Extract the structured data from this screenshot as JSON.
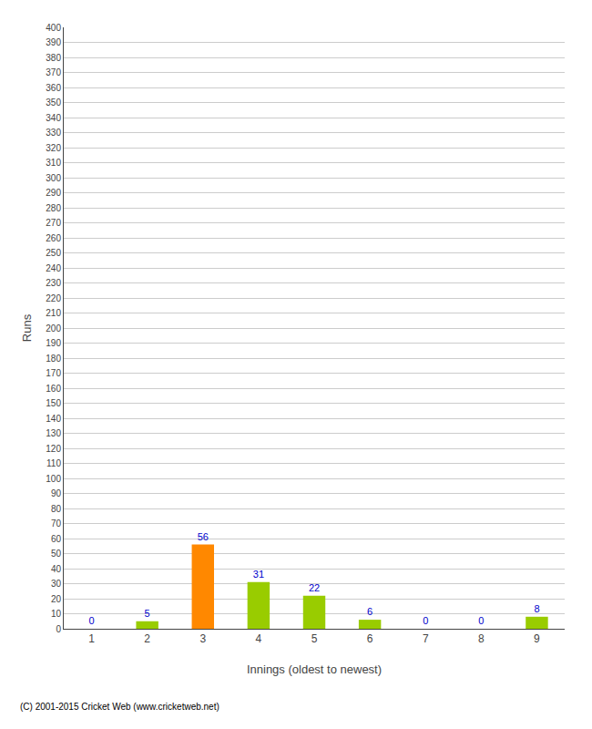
{
  "chart_data": {
    "type": "bar",
    "xlabel": "Innings (oldest to newest)",
    "ylabel": "Runs",
    "categories": [
      "1",
      "2",
      "3",
      "4",
      "5",
      "6",
      "7",
      "8",
      "9"
    ],
    "values": [
      0,
      5,
      56,
      31,
      22,
      6,
      0,
      0,
      8
    ],
    "colors": [
      "#99cc00",
      "#99cc00",
      "#ff8800",
      "#99cc00",
      "#99cc00",
      "#99cc00",
      "#99cc00",
      "#99cc00",
      "#99cc00"
    ],
    "ylim": [
      0,
      400
    ],
    "yticks": [
      0,
      10,
      20,
      30,
      40,
      50,
      60,
      70,
      80,
      90,
      100,
      110,
      120,
      130,
      140,
      150,
      160,
      170,
      180,
      190,
      200,
      210,
      220,
      230,
      240,
      250,
      260,
      270,
      280,
      290,
      300,
      310,
      320,
      330,
      340,
      350,
      360,
      370,
      380,
      390,
      400
    ],
    "grid": true,
    "data_labels": true,
    "annotations": [
      "(C) 2001-2015 Cricket Web (www.cricketweb.net)"
    ]
  }
}
